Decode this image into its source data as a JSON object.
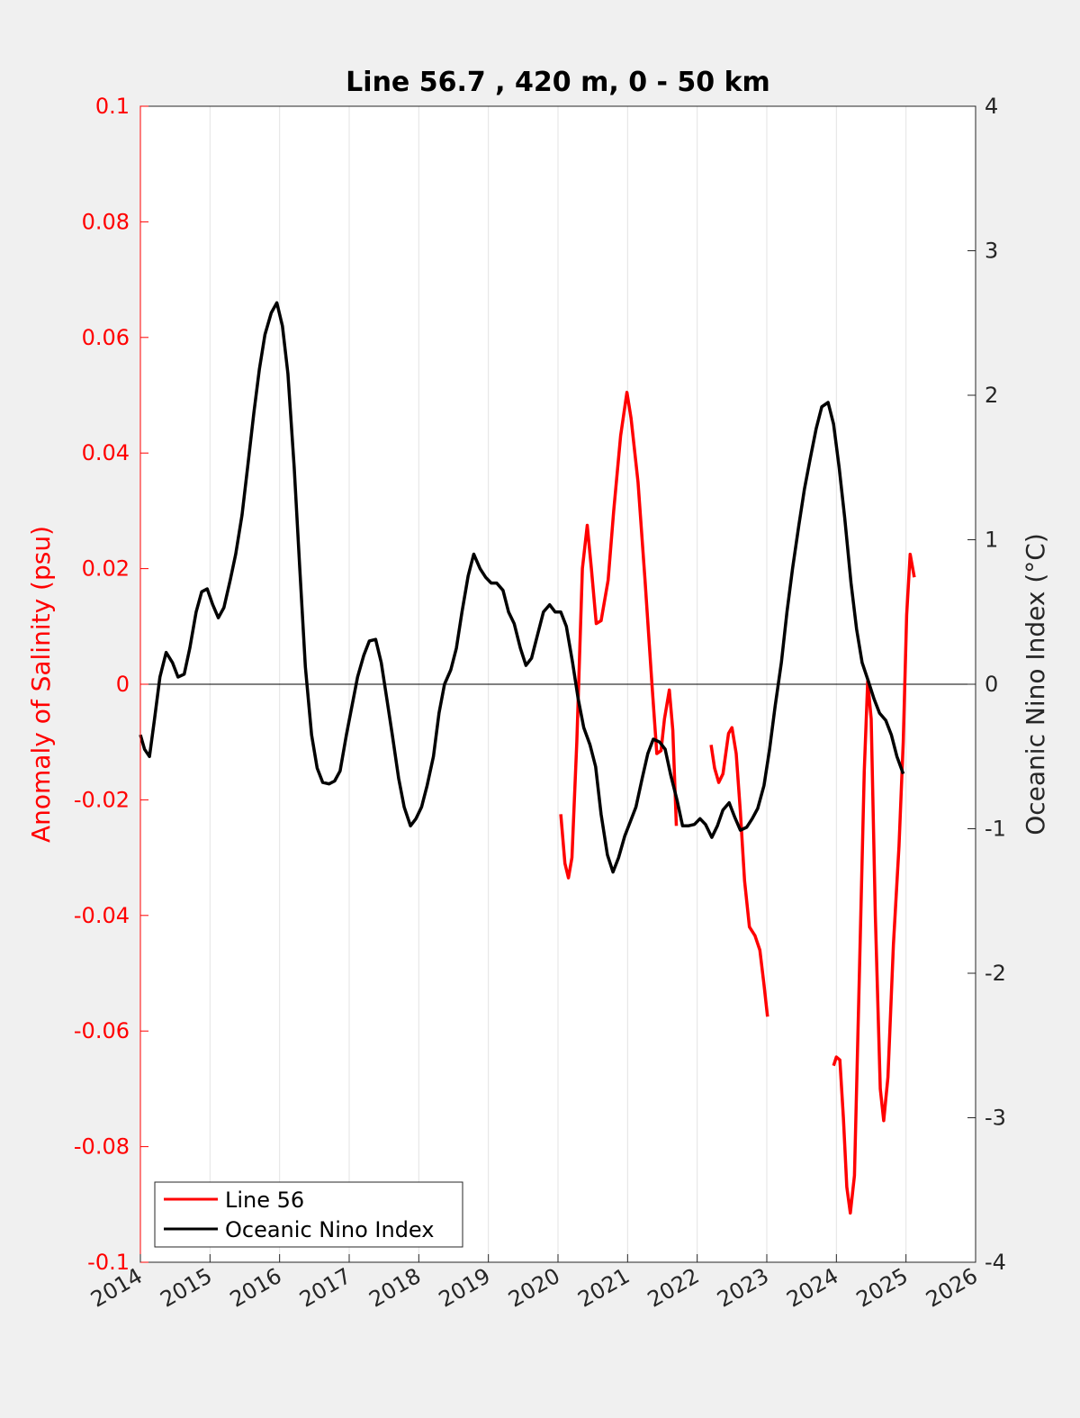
{
  "chart_data": {
    "type": "line",
    "title": "Line 56.7 , 420 m, 0 - 50 km",
    "xlabel": "",
    "ylabel_left": "Anomaly of Salinity (psu)",
    "ylabel_right": "Oceanic Nino Index (°C)",
    "xlim": [
      2014,
      2026
    ],
    "ylim_left": [
      -0.1,
      0.1
    ],
    "ylim_right": [
      -4,
      4
    ],
    "x_ticks": [
      "2014",
      "2015",
      "2016",
      "2017",
      "2018",
      "2019",
      "2020",
      "2021",
      "2022",
      "2023",
      "2024",
      "2025",
      "2026"
    ],
    "y_ticks_left": [
      "0.1",
      "0.08",
      "0.06",
      "0.04",
      "0.02",
      "0",
      "-0.02",
      "-0.04",
      "-0.06",
      "-0.08",
      "-0.1"
    ],
    "y_ticks_right": [
      "4",
      "3",
      "2",
      "1",
      "0",
      "-1",
      "-2",
      "-3",
      "-4"
    ],
    "grid": "vertical",
    "legend": {
      "location": "bottom-left",
      "entries": [
        "Line 56",
        "Oceanic Nino Index"
      ]
    },
    "colors": {
      "line56": "#ff0000",
      "oni": "#000000",
      "background": "#f0f0f0"
    },
    "series": [
      {
        "name": "Line 56",
        "axis": "left",
        "color": "#ff0000",
        "segments": [
          [
            [
              2020.04,
              -0.0225
            ],
            [
              2020.1,
              -0.031
            ],
            [
              2020.15,
              -0.0335
            ],
            [
              2020.2,
              -0.03
            ],
            [
              2020.27,
              -0.01
            ],
            [
              2020.35,
              0.02
            ],
            [
              2020.42,
              0.0275
            ],
            [
              2020.48,
              0.02
            ],
            [
              2020.55,
              0.0105
            ],
            [
              2020.62,
              0.011
            ],
            [
              2020.72,
              0.018
            ],
            [
              2020.8,
              0.03
            ],
            [
              2020.9,
              0.043
            ],
            [
              2020.99,
              0.0505
            ],
            [
              2021.05,
              0.046
            ],
            [
              2021.15,
              0.035
            ],
            [
              2021.25,
              0.018
            ],
            [
              2021.35,
              0.0
            ],
            [
              2021.42,
              -0.012
            ],
            [
              2021.48,
              -0.0115
            ],
            [
              2021.53,
              -0.006
            ],
            [
              2021.6,
              -0.001
            ],
            [
              2021.65,
              -0.008
            ],
            [
              2021.7,
              -0.0245
            ]
          ],
          [
            [
              2022.2,
              -0.0105
            ],
            [
              2022.25,
              -0.0145
            ],
            [
              2022.31,
              -0.017
            ],
            [
              2022.37,
              -0.0155
            ],
            [
              2022.45,
              -0.0085
            ],
            [
              2022.5,
              -0.0075
            ],
            [
              2022.56,
              -0.012
            ],
            [
              2022.62,
              -0.022
            ],
            [
              2022.68,
              -0.034
            ],
            [
              2022.75,
              -0.042
            ],
            [
              2022.83,
              -0.0435
            ],
            [
              2022.9,
              -0.046
            ],
            [
              2022.96,
              -0.052
            ],
            [
              2023.01,
              -0.0575
            ]
          ],
          [
            [
              2023.96,
              -0.066
            ],
            [
              2024.0,
              -0.0645
            ],
            [
              2024.05,
              -0.065
            ],
            [
              2024.1,
              -0.075
            ],
            [
              2024.15,
              -0.087
            ],
            [
              2024.2,
              -0.0915
            ],
            [
              2024.26,
              -0.085
            ],
            [
              2024.33,
              -0.05
            ],
            [
              2024.4,
              -0.015
            ],
            [
              2024.45,
              0.0005
            ],
            [
              2024.5,
              -0.006
            ],
            [
              2024.56,
              -0.04
            ],
            [
              2024.63,
              -0.07
            ],
            [
              2024.68,
              -0.0755
            ],
            [
              2024.74,
              -0.068
            ],
            [
              2024.82,
              -0.045
            ],
            [
              2024.9,
              -0.028
            ],
            [
              2024.96,
              -0.01
            ],
            [
              2025.01,
              0.012
            ],
            [
              2025.06,
              0.0225
            ],
            [
              2025.12,
              0.0185
            ]
          ]
        ]
      },
      {
        "name": "Oceanic Nino Index",
        "axis": "right",
        "color": "#000000",
        "points": [
          [
            2014.0,
            -0.35
          ],
          [
            2014.06,
            -0.45
          ],
          [
            2014.13,
            -0.5
          ],
          [
            2014.2,
            -0.25
          ],
          [
            2014.28,
            0.05
          ],
          [
            2014.37,
            0.22
          ],
          [
            2014.46,
            0.15
          ],
          [
            2014.54,
            0.05
          ],
          [
            2014.63,
            0.07
          ],
          [
            2014.71,
            0.25
          ],
          [
            2014.8,
            0.5
          ],
          [
            2014.88,
            0.64
          ],
          [
            2014.96,
            0.66
          ],
          [
            2015.04,
            0.55
          ],
          [
            2015.12,
            0.46
          ],
          [
            2015.2,
            0.53
          ],
          [
            2015.29,
            0.72
          ],
          [
            2015.37,
            0.9
          ],
          [
            2015.46,
            1.17
          ],
          [
            2015.54,
            1.5
          ],
          [
            2015.63,
            1.88
          ],
          [
            2015.71,
            2.18
          ],
          [
            2015.79,
            2.42
          ],
          [
            2015.88,
            2.57
          ],
          [
            2015.96,
            2.64
          ],
          [
            2016.04,
            2.48
          ],
          [
            2016.12,
            2.15
          ],
          [
            2016.21,
            1.5
          ],
          [
            2016.29,
            0.8
          ],
          [
            2016.37,
            0.12
          ],
          [
            2016.46,
            -0.35
          ],
          [
            2016.54,
            -0.58
          ],
          [
            2016.62,
            -0.68
          ],
          [
            2016.71,
            -0.69
          ],
          [
            2016.79,
            -0.67
          ],
          [
            2016.87,
            -0.6
          ],
          [
            2016.96,
            -0.35
          ],
          [
            2017.04,
            -0.15
          ],
          [
            2017.12,
            0.05
          ],
          [
            2017.21,
            0.2
          ],
          [
            2017.29,
            0.3
          ],
          [
            2017.38,
            0.31
          ],
          [
            2017.46,
            0.15
          ],
          [
            2017.54,
            -0.1
          ],
          [
            2017.62,
            -0.35
          ],
          [
            2017.71,
            -0.65
          ],
          [
            2017.79,
            -0.85
          ],
          [
            2017.88,
            -0.98
          ],
          [
            2017.96,
            -0.93
          ],
          [
            2018.04,
            -0.85
          ],
          [
            2018.12,
            -0.7
          ],
          [
            2018.21,
            -0.5
          ],
          [
            2018.29,
            -0.2
          ],
          [
            2018.37,
            0.0
          ],
          [
            2018.46,
            0.1
          ],
          [
            2018.54,
            0.25
          ],
          [
            2018.62,
            0.5
          ],
          [
            2018.71,
            0.75
          ],
          [
            2018.79,
            0.9
          ],
          [
            2018.88,
            0.8
          ],
          [
            2018.96,
            0.74
          ],
          [
            2019.04,
            0.7
          ],
          [
            2019.12,
            0.7
          ],
          [
            2019.21,
            0.65
          ],
          [
            2019.29,
            0.5
          ],
          [
            2019.37,
            0.42
          ],
          [
            2019.46,
            0.25
          ],
          [
            2019.54,
            0.13
          ],
          [
            2019.62,
            0.18
          ],
          [
            2019.71,
            0.35
          ],
          [
            2019.79,
            0.5
          ],
          [
            2019.88,
            0.55
          ],
          [
            2019.96,
            0.5
          ],
          [
            2020.04,
            0.5
          ],
          [
            2020.12,
            0.4
          ],
          [
            2020.21,
            0.15
          ],
          [
            2020.29,
            -0.1
          ],
          [
            2020.37,
            -0.3
          ],
          [
            2020.46,
            -0.42
          ],
          [
            2020.54,
            -0.57
          ],
          [
            2020.62,
            -0.9
          ],
          [
            2020.71,
            -1.18
          ],
          [
            2020.79,
            -1.3
          ],
          [
            2020.87,
            -1.2
          ],
          [
            2020.96,
            -1.05
          ],
          [
            2021.04,
            -0.95
          ],
          [
            2021.12,
            -0.85
          ],
          [
            2021.21,
            -0.65
          ],
          [
            2021.29,
            -0.48
          ],
          [
            2021.37,
            -0.38
          ],
          [
            2021.46,
            -0.4
          ],
          [
            2021.54,
            -0.45
          ],
          [
            2021.62,
            -0.63
          ],
          [
            2021.71,
            -0.8
          ],
          [
            2021.79,
            -0.98
          ],
          [
            2021.87,
            -0.98
          ],
          [
            2021.96,
            -0.97
          ],
          [
            2022.04,
            -0.93
          ],
          [
            2022.12,
            -0.97
          ],
          [
            2022.21,
            -1.06
          ],
          [
            2022.29,
            -0.98
          ],
          [
            2022.37,
            -0.87
          ],
          [
            2022.46,
            -0.82
          ],
          [
            2022.54,
            -0.92
          ],
          [
            2022.62,
            -1.01
          ],
          [
            2022.71,
            -0.99
          ],
          [
            2022.79,
            -0.93
          ],
          [
            2022.87,
            -0.86
          ],
          [
            2022.96,
            -0.7
          ],
          [
            2023.04,
            -0.45
          ],
          [
            2023.12,
            -0.15
          ],
          [
            2023.21,
            0.15
          ],
          [
            2023.29,
            0.5
          ],
          [
            2023.37,
            0.8
          ],
          [
            2023.46,
            1.1
          ],
          [
            2023.54,
            1.35
          ],
          [
            2023.62,
            1.55
          ],
          [
            2023.71,
            1.77
          ],
          [
            2023.79,
            1.92
          ],
          [
            2023.88,
            1.95
          ],
          [
            2023.96,
            1.8
          ],
          [
            2024.04,
            1.5
          ],
          [
            2024.12,
            1.15
          ],
          [
            2024.21,
            0.7
          ],
          [
            2024.29,
            0.38
          ],
          [
            2024.37,
            0.15
          ],
          [
            2024.46,
            0.02
          ],
          [
            2024.54,
            -0.1
          ],
          [
            2024.62,
            -0.2
          ],
          [
            2024.71,
            -0.25
          ],
          [
            2024.79,
            -0.35
          ],
          [
            2024.87,
            -0.5
          ],
          [
            2024.96,
            -0.62
          ]
        ]
      }
    ]
  }
}
